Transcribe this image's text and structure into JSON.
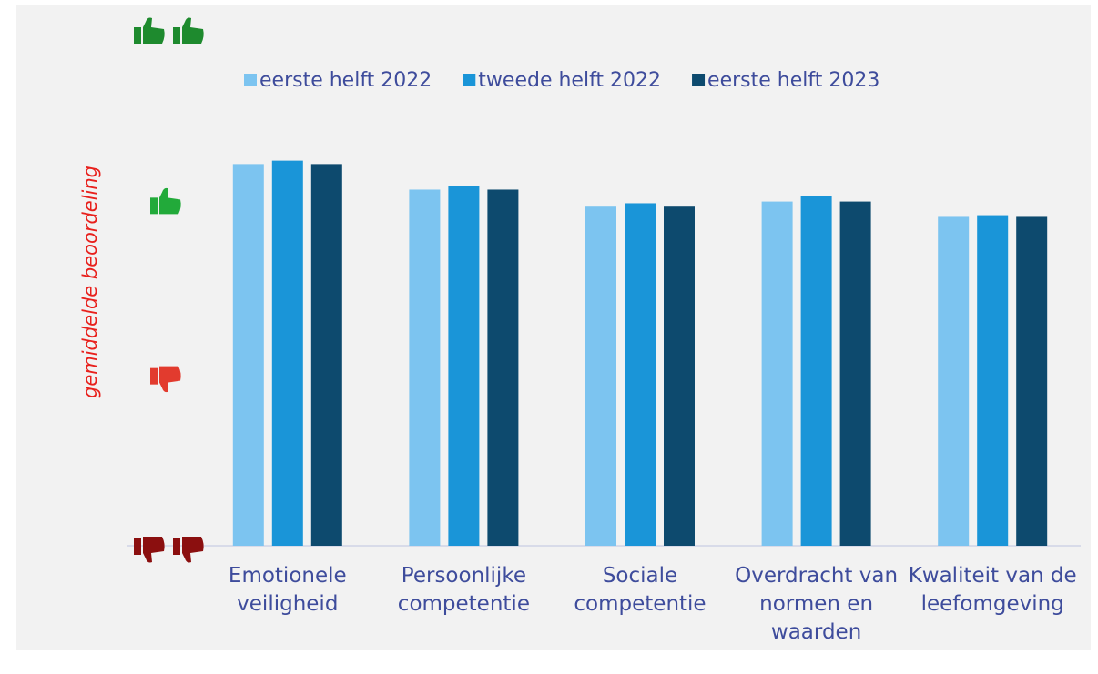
{
  "chart_data": {
    "type": "bar",
    "y_label": "gemiddelde beoordeling",
    "categories": [
      "Emotionele veiligheid",
      "Persoonlijke competentie",
      "Sociale competentie",
      "Overdracht van normen en waarden",
      "Kwaliteit van de leefomgeving"
    ],
    "series": [
      {
        "name": "eerste helft 2022",
        "color": "#7cc4f0",
        "values": [
          3.24,
          3.09,
          2.99,
          3.02,
          2.93
        ]
      },
      {
        "name": "tweede helft 2022",
        "color": "#1a95d8",
        "values": [
          3.26,
          3.11,
          3.01,
          3.05,
          2.94
        ]
      },
      {
        "name": "eerste helft 2023",
        "color": "#0d4a6e",
        "values": [
          3.24,
          3.09,
          2.99,
          3.02,
          2.93
        ]
      }
    ],
    "ylim": [
      1,
      4
    ],
    "yticks": [
      1,
      2,
      3,
      4
    ],
    "tick_colors": [
      "#8b0f0f",
      "#e23b2e",
      "#22aa3a",
      "#1e8a2e"
    ],
    "legend": "top"
  }
}
